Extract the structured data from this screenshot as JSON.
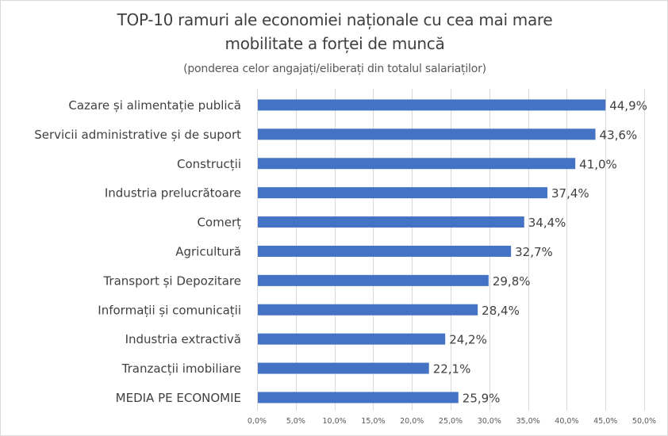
{
  "chart_data": {
    "type": "bar",
    "orientation": "horizontal",
    "title": "TOP-10 ramuri ale economiei naționale cu cea mai mare mobilitate a forței de muncă",
    "title_line1": "TOP-10 ramuri ale economiei naționale cu cea mai mare",
    "title_line2": "mobilitate a forței de muncă",
    "subtitle": "(ponderea celor angajați/eliberați din totalul salariaților)",
    "xlabel": "",
    "ylabel": "",
    "categories": [
      "Cazare și alimentație publică",
      "Servicii administrative și de suport",
      "Construcții",
      "Industria prelucrătoare",
      "Comerț",
      "Agricultură",
      "Transport și Depozitare",
      "Informații și comunicații",
      "Industria extractivă",
      "Tranzacții imobiliare",
      "MEDIA PE ECONOMIE"
    ],
    "values": [
      44.9,
      43.6,
      41.0,
      37.4,
      34.4,
      32.7,
      29.8,
      28.4,
      24.2,
      22.1,
      25.9
    ],
    "data_labels": [
      "44,9%",
      "43,6%",
      "41,0%",
      "37,4%",
      "34,4%",
      "32,7%",
      "29,8%",
      "28,4%",
      "24,2%",
      "22,1%",
      "25,9%"
    ],
    "xlim": [
      0,
      50
    ],
    "x_ticks": [
      0,
      5,
      10,
      15,
      20,
      25,
      30,
      35,
      40,
      45,
      50
    ],
    "x_tick_labels": [
      "0,0%",
      "5,0%",
      "10,0%",
      "15,0%",
      "20,0%",
      "25,0%",
      "30,0%",
      "35,0%",
      "40,0%",
      "45,0%",
      "50,0%"
    ],
    "grid": "vertical",
    "legend": "none",
    "bar_color": "#4472c4",
    "grid_color": "#d9d9d9"
  }
}
